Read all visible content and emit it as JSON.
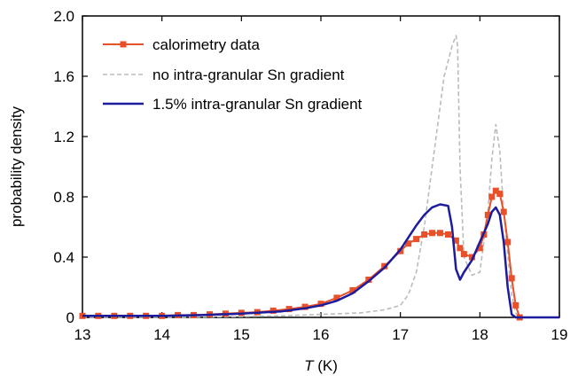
{
  "chart_data": {
    "type": "line",
    "xlabel_italic": "T",
    "xlabel_unit": " (K)",
    "ylabel": "probability density",
    "xlim": [
      13,
      19
    ],
    "ylim": [
      0,
      2.0
    ],
    "xticks": [
      13,
      14,
      15,
      16,
      17,
      18,
      19
    ],
    "yticks": [
      0,
      0.4,
      0.8,
      1.2,
      1.6,
      2.0
    ],
    "ytick_labels": [
      "0",
      "0.4",
      "0.8",
      "1.2",
      "1.6",
      "2.0"
    ],
    "grid": false,
    "legend_position": "top-left",
    "series": [
      {
        "name": "calorimetry data",
        "color": "#e8502a",
        "style": "line-square-markers",
        "x": [
          13.0,
          13.2,
          13.4,
          13.6,
          13.8,
          14.0,
          14.2,
          14.4,
          14.6,
          14.8,
          15.0,
          15.2,
          15.4,
          15.6,
          15.8,
          16.0,
          16.2,
          16.4,
          16.6,
          16.8,
          17.0,
          17.1,
          17.2,
          17.3,
          17.4,
          17.5,
          17.6,
          17.7,
          17.75,
          17.8,
          17.9,
          18.0,
          18.05,
          18.1,
          18.15,
          18.2,
          18.25,
          18.3,
          18.35,
          18.4,
          18.45,
          18.5
        ],
        "y": [
          0.01,
          0.01,
          0.01,
          0.01,
          0.01,
          0.01,
          0.015,
          0.015,
          0.02,
          0.025,
          0.03,
          0.035,
          0.045,
          0.055,
          0.07,
          0.09,
          0.13,
          0.18,
          0.25,
          0.34,
          0.44,
          0.49,
          0.52,
          0.55,
          0.56,
          0.56,
          0.55,
          0.51,
          0.46,
          0.42,
          0.4,
          0.46,
          0.55,
          0.68,
          0.8,
          0.84,
          0.82,
          0.7,
          0.5,
          0.26,
          0.08,
          0.0
        ]
      },
      {
        "name": "no intra-granular Sn gradient",
        "color": "#bbbbbb",
        "style": "dashed",
        "x": [
          13.0,
          14.0,
          15.0,
          15.5,
          16.0,
          16.5,
          16.8,
          17.0,
          17.1,
          17.2,
          17.3,
          17.4,
          17.5,
          17.55,
          17.6,
          17.65,
          17.7,
          17.72,
          17.75,
          17.8,
          17.9,
          18.0,
          18.1,
          18.15,
          18.2,
          18.25,
          18.3,
          18.4,
          18.45,
          18.5,
          18.6,
          19.0
        ],
        "y": [
          0.0,
          0.0,
          0.005,
          0.01,
          0.02,
          0.03,
          0.05,
          0.08,
          0.15,
          0.3,
          0.6,
          1.0,
          1.4,
          1.6,
          1.7,
          1.8,
          1.87,
          1.8,
          1.0,
          0.4,
          0.28,
          0.3,
          0.7,
          1.05,
          1.28,
          1.1,
          0.7,
          0.15,
          0.03,
          0.005,
          0.0,
          0.0
        ]
      },
      {
        "name": "1.5% intra-granular Sn gradient",
        "color": "#1c1c9c",
        "style": "solid",
        "x": [
          13.0,
          13.5,
          14.0,
          14.5,
          15.0,
          15.5,
          15.8,
          16.0,
          16.2,
          16.4,
          16.6,
          16.8,
          17.0,
          17.1,
          17.2,
          17.3,
          17.4,
          17.5,
          17.6,
          17.65,
          17.7,
          17.75,
          17.8,
          17.9,
          18.0,
          18.1,
          18.15,
          18.2,
          18.25,
          18.3,
          18.35,
          18.4,
          18.45,
          18.5,
          18.6,
          19.0
        ],
        "y": [
          0.01,
          0.01,
          0.01,
          0.015,
          0.025,
          0.04,
          0.06,
          0.08,
          0.11,
          0.16,
          0.24,
          0.33,
          0.45,
          0.53,
          0.61,
          0.68,
          0.73,
          0.75,
          0.74,
          0.6,
          0.32,
          0.25,
          0.3,
          0.38,
          0.5,
          0.62,
          0.7,
          0.73,
          0.68,
          0.5,
          0.2,
          0.02,
          0.0,
          0.0,
          0.0,
          0.0
        ]
      }
    ]
  }
}
